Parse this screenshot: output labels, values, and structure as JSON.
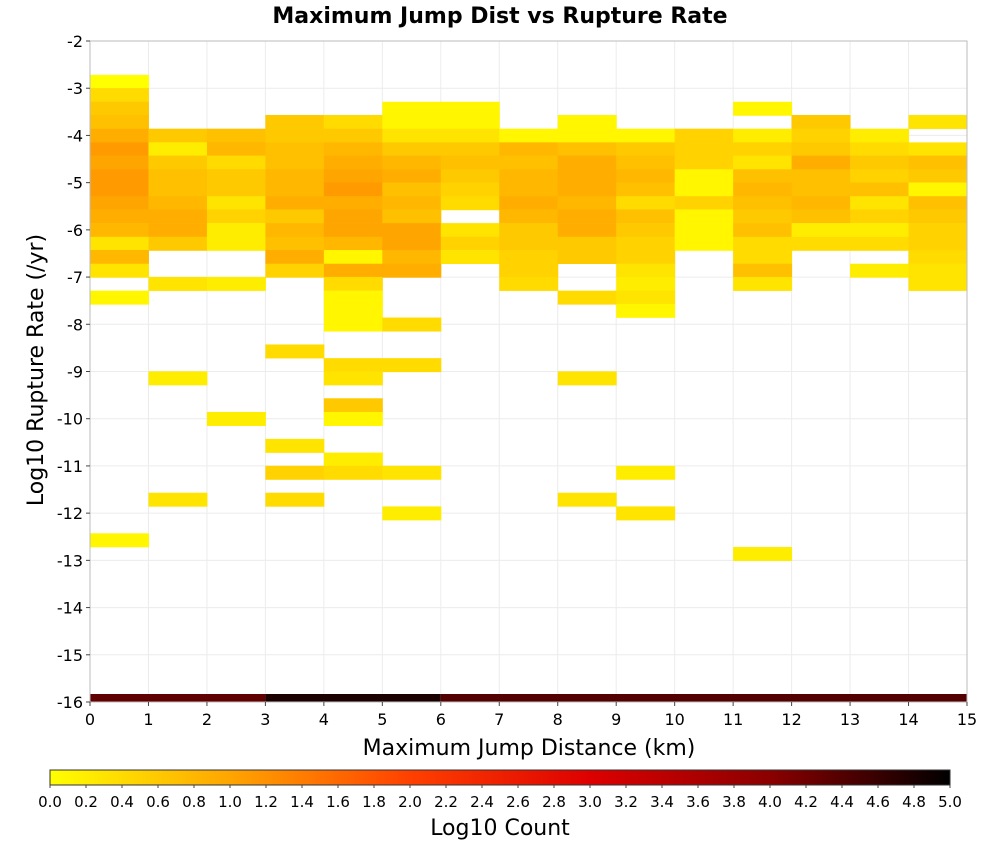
{
  "chart_data": {
    "type": "heatmap",
    "title": "Maximum Jump Dist vs Rupture Rate",
    "xlabel": "Maximum Jump Distance (km)",
    "ylabel": "Log10 Rupture Rate (/yr)",
    "xlim": [
      0,
      15
    ],
    "ylim": [
      -16,
      -2
    ],
    "x_ticks": [
      "0",
      "1",
      "2",
      "3",
      "4",
      "5",
      "6",
      "7",
      "8",
      "9",
      "10",
      "11",
      "12",
      "13",
      "14",
      "15"
    ],
    "y_ticks": [
      "-2",
      "-3",
      "-4",
      "-5",
      "-6",
      "-7",
      "-8",
      "-9",
      "-10",
      "-11",
      "-12",
      "-13",
      "-14",
      "-15",
      "-16"
    ],
    "x_bin_width": 1,
    "y_bin_height": 0.2857,
    "colorbar": {
      "label": "Log10 Count",
      "range": [
        0,
        5
      ],
      "ticks": [
        "0.0",
        "0.2",
        "0.4",
        "0.6",
        "0.8",
        "1.0",
        "1.2",
        "1.4",
        "1.6",
        "1.8",
        "2.0",
        "2.2",
        "2.4",
        "2.6",
        "2.8",
        "3.0",
        "3.2",
        "3.4",
        "3.6",
        "3.8",
        "4.0",
        "4.2",
        "4.4",
        "4.6",
        "4.8",
        "5.0"
      ],
      "colors": [
        "#ffff00",
        "#ffa500",
        "#ff4000",
        "#dd0000",
        "#8b0000",
        "#000000"
      ]
    },
    "bottom_band": [
      {
        "x0": 0,
        "x1": 3,
        "value": 4.3
      },
      {
        "x0": 3,
        "x1": 6,
        "value": 4.8
      },
      {
        "x0": 6,
        "x1": 15,
        "value": 4.4
      }
    ],
    "columns": [
      {
        "x": 0.5,
        "cells": [
          [
            -2.86,
            0.0
          ],
          [
            -3.14,
            0.4
          ],
          [
            -3.43,
            0.6
          ],
          [
            -3.71,
            0.7
          ],
          [
            -4.0,
            0.9
          ],
          [
            -4.29,
            1.1
          ],
          [
            -4.57,
            1.0
          ],
          [
            -4.86,
            1.1
          ],
          [
            -5.14,
            1.1
          ],
          [
            -5.43,
            1.0
          ],
          [
            -5.71,
            0.9
          ],
          [
            -6.0,
            0.8
          ],
          [
            -6.29,
            0.3
          ],
          [
            -6.57,
            0.8
          ],
          [
            -6.86,
            0.3
          ],
          [
            -7.43,
            0.1
          ],
          [
            -12.57,
            0.1
          ]
        ]
      },
      {
        "x": 1.5,
        "cells": [
          [
            -4.0,
            0.6
          ],
          [
            -4.29,
            0.2
          ],
          [
            -4.57,
            0.6
          ],
          [
            -4.86,
            0.7
          ],
          [
            -5.14,
            0.7
          ],
          [
            -5.43,
            0.8
          ],
          [
            -5.71,
            0.9
          ],
          [
            -6.0,
            0.9
          ],
          [
            -6.29,
            0.6
          ],
          [
            -7.14,
            0.3
          ],
          [
            -9.14,
            0.2
          ],
          [
            -11.71,
            0.3
          ]
        ]
      },
      {
        "x": 2.5,
        "cells": [
          [
            -4.0,
            0.7
          ],
          [
            -4.29,
            0.8
          ],
          [
            -4.57,
            0.4
          ],
          [
            -4.86,
            0.6
          ],
          [
            -5.14,
            0.6
          ],
          [
            -5.43,
            0.3
          ],
          [
            -5.71,
            0.5
          ],
          [
            -6.0,
            0.2
          ],
          [
            -6.29,
            0.2
          ],
          [
            -7.14,
            0.2
          ],
          [
            -10.0,
            0.2
          ]
        ]
      },
      {
        "x": 3.5,
        "cells": [
          [
            -3.71,
            0.6
          ],
          [
            -4.0,
            0.6
          ],
          [
            -4.29,
            0.7
          ],
          [
            -4.57,
            0.7
          ],
          [
            -4.86,
            0.8
          ],
          [
            -5.14,
            0.8
          ],
          [
            -5.43,
            0.9
          ],
          [
            -5.71,
            0.6
          ],
          [
            -6.0,
            0.8
          ],
          [
            -6.29,
            0.7
          ],
          [
            -6.57,
            0.9
          ],
          [
            -6.86,
            0.5
          ],
          [
            -8.57,
            0.4
          ],
          [
            -10.57,
            0.3
          ],
          [
            -11.14,
            0.5
          ],
          [
            -11.71,
            0.4
          ]
        ]
      },
      {
        "x": 4.5,
        "cells": [
          [
            -3.71,
            0.4
          ],
          [
            -4.0,
            0.6
          ],
          [
            -4.29,
            0.8
          ],
          [
            -4.57,
            0.9
          ],
          [
            -4.86,
            1.0
          ],
          [
            -5.14,
            1.1
          ],
          [
            -5.43,
            0.9
          ],
          [
            -5.71,
            1.0
          ],
          [
            -6.0,
            1.0
          ],
          [
            -6.29,
            0.8
          ],
          [
            -6.57,
            0.1
          ],
          [
            -6.86,
            0.9
          ],
          [
            -7.14,
            0.4
          ],
          [
            -7.43,
            0.1
          ],
          [
            -7.71,
            0.1
          ],
          [
            -8.0,
            0.1
          ],
          [
            -8.86,
            0.4
          ],
          [
            -9.14,
            0.3
          ],
          [
            -9.71,
            0.6
          ],
          [
            -10.0,
            0.1
          ],
          [
            -10.86,
            0.2
          ],
          [
            -11.14,
            0.4
          ]
        ]
      },
      {
        "x": 5.5,
        "cells": [
          [
            -3.43,
            0.1
          ],
          [
            -3.71,
            0.1
          ],
          [
            -4.0,
            0.3
          ],
          [
            -4.29,
            0.6
          ],
          [
            -4.57,
            0.8
          ],
          [
            -4.86,
            0.9
          ],
          [
            -5.14,
            0.7
          ],
          [
            -5.43,
            0.8
          ],
          [
            -5.71,
            0.7
          ],
          [
            -6.0,
            1.0
          ],
          [
            -6.29,
            1.0
          ],
          [
            -6.57,
            0.8
          ],
          [
            -6.86,
            0.9
          ],
          [
            -8.0,
            0.4
          ],
          [
            -8.86,
            0.4
          ],
          [
            -11.14,
            0.3
          ],
          [
            -12.0,
            0.2
          ]
        ]
      },
      {
        "x": 6.5,
        "cells": [
          [
            -3.43,
            0.1
          ],
          [
            -3.71,
            0.1
          ],
          [
            -4.0,
            0.3
          ],
          [
            -4.29,
            0.6
          ],
          [
            -4.57,
            0.7
          ],
          [
            -4.86,
            0.6
          ],
          [
            -5.14,
            0.5
          ],
          [
            -5.43,
            0.4
          ],
          [
            -6.0,
            0.3
          ],
          [
            -6.29,
            0.5
          ],
          [
            -6.57,
            0.3
          ]
        ]
      },
      {
        "x": 7.5,
        "cells": [
          [
            -4.0,
            0.1
          ],
          [
            -4.29,
            0.8
          ],
          [
            -4.57,
            0.7
          ],
          [
            -4.86,
            0.8
          ],
          [
            -5.14,
            0.8
          ],
          [
            -5.43,
            0.9
          ],
          [
            -5.71,
            0.8
          ],
          [
            -6.0,
            0.6
          ],
          [
            -6.29,
            0.6
          ],
          [
            -6.57,
            0.5
          ],
          [
            -6.86,
            0.5
          ],
          [
            -7.14,
            0.4
          ]
        ]
      },
      {
        "x": 8.5,
        "cells": [
          [
            -3.71,
            0.1
          ],
          [
            -4.0,
            0.1
          ],
          [
            -4.29,
            0.7
          ],
          [
            -4.57,
            0.9
          ],
          [
            -4.86,
            0.9
          ],
          [
            -5.14,
            0.9
          ],
          [
            -5.43,
            0.8
          ],
          [
            -5.71,
            0.9
          ],
          [
            -6.0,
            0.9
          ],
          [
            -6.29,
            0.6
          ],
          [
            -6.57,
            0.6
          ],
          [
            -7.43,
            0.4
          ],
          [
            -9.14,
            0.3
          ],
          [
            -11.71,
            0.3
          ]
        ]
      },
      {
        "x": 9.5,
        "cells": [
          [
            -4.0,
            0.1
          ],
          [
            -4.29,
            0.6
          ],
          [
            -4.57,
            0.7
          ],
          [
            -4.86,
            0.8
          ],
          [
            -5.14,
            0.7
          ],
          [
            -5.43,
            0.4
          ],
          [
            -5.71,
            0.7
          ],
          [
            -6.0,
            0.6
          ],
          [
            -6.29,
            0.5
          ],
          [
            -6.57,
            0.5
          ],
          [
            -6.86,
            0.3
          ],
          [
            -7.14,
            0.2
          ],
          [
            -7.43,
            0.3
          ],
          [
            -7.71,
            0.1
          ],
          [
            -11.14,
            0.2
          ],
          [
            -12.0,
            0.3
          ]
        ]
      },
      {
        "x": 10.5,
        "cells": [
          [
            -4.0,
            0.5
          ],
          [
            -4.29,
            0.5
          ],
          [
            -4.57,
            0.5
          ],
          [
            -4.86,
            0.1
          ],
          [
            -5.14,
            0.1
          ],
          [
            -5.43,
            0.5
          ],
          [
            -5.71,
            0.1
          ],
          [
            -6.0,
            0.1
          ],
          [
            -6.29,
            0.1
          ]
        ]
      },
      {
        "x": 11.5,
        "cells": [
          [
            -3.43,
            0.1
          ],
          [
            -4.0,
            0.2
          ],
          [
            -4.29,
            0.5
          ],
          [
            -4.57,
            0.3
          ],
          [
            -4.86,
            0.7
          ],
          [
            -5.14,
            0.8
          ],
          [
            -5.43,
            0.7
          ],
          [
            -5.71,
            0.6
          ],
          [
            -6.0,
            0.7
          ],
          [
            -6.29,
            0.4
          ],
          [
            -6.57,
            0.4
          ],
          [
            -6.86,
            0.7
          ],
          [
            -7.14,
            0.3
          ],
          [
            -12.86,
            0.2
          ]
        ]
      },
      {
        "x": 12.5,
        "cells": [
          [
            -3.71,
            0.6
          ],
          [
            -4.0,
            0.5
          ],
          [
            -4.29,
            0.6
          ],
          [
            -4.57,
            0.9
          ],
          [
            -4.86,
            0.7
          ],
          [
            -5.14,
            0.7
          ],
          [
            -5.43,
            0.8
          ],
          [
            -5.71,
            0.7
          ],
          [
            -6.0,
            0.2
          ],
          [
            -6.29,
            0.4
          ]
        ]
      },
      {
        "x": 13.5,
        "cells": [
          [
            -4.0,
            0.2
          ],
          [
            -4.29,
            0.4
          ],
          [
            -4.57,
            0.6
          ],
          [
            -4.86,
            0.5
          ],
          [
            -5.14,
            0.7
          ],
          [
            -5.43,
            0.3
          ],
          [
            -5.71,
            0.5
          ],
          [
            -6.0,
            0.2
          ],
          [
            -6.29,
            0.4
          ],
          [
            -6.86,
            0.2
          ]
        ]
      },
      {
        "x": 14.5,
        "cells": [
          [
            -3.71,
            0.3
          ],
          [
            -4.29,
            0.3
          ],
          [
            -4.57,
            0.7
          ],
          [
            -4.86,
            0.6
          ],
          [
            -5.14,
            0.1
          ],
          [
            -5.43,
            0.7
          ],
          [
            -5.71,
            0.6
          ],
          [
            -6.0,
            0.5
          ],
          [
            -6.29,
            0.5
          ],
          [
            -6.57,
            0.4
          ],
          [
            -6.86,
            0.3
          ],
          [
            -7.14,
            0.3
          ]
        ]
      }
    ]
  }
}
